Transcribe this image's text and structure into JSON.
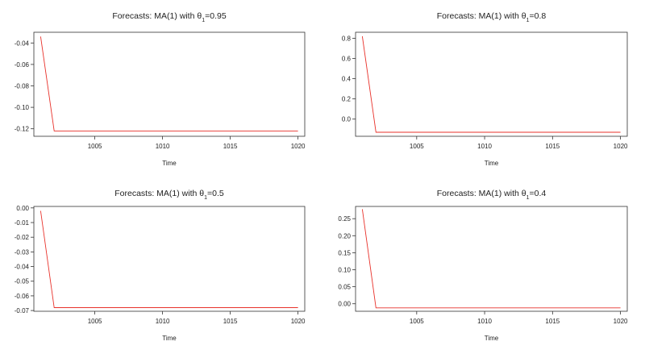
{
  "chart_data": [
    {
      "type": "line",
      "title_prefix": "Forecasts: MA(1) with θ",
      "title_subscript": "1",
      "title_suffix": "=0.95",
      "xlabel": "Time",
      "xlim": [
        1000.5,
        1020.5
      ],
      "ylim": [
        -0.127,
        -0.03
      ],
      "xticks": [
        1005,
        1010,
        1015,
        1020
      ],
      "yticks": [
        -0.12,
        -0.1,
        -0.08,
        -0.06,
        -0.04
      ],
      "ytick_labels": [
        "-0.12",
        "-0.10",
        "-0.08",
        "-0.06",
        "-0.04"
      ],
      "line_color": "#e8312a",
      "series": [
        {
          "x": [
            1001,
            1002,
            1020
          ],
          "y": [
            -0.034,
            -0.122,
            -0.122
          ]
        }
      ]
    },
    {
      "type": "line",
      "title_prefix": "Forecasts: MA(1) with θ",
      "title_subscript": "1",
      "title_suffix": "=0.8",
      "xlabel": "Time",
      "xlim": [
        1000.5,
        1020.5
      ],
      "ylim": [
        -0.17,
        0.86
      ],
      "xticks": [
        1005,
        1010,
        1015,
        1020
      ],
      "yticks": [
        0.0,
        0.2,
        0.4,
        0.6,
        0.8
      ],
      "ytick_labels": [
        "0.0",
        "0.2",
        "0.4",
        "0.6",
        "0.8"
      ],
      "line_color": "#e8312a",
      "series": [
        {
          "x": [
            1001,
            1002,
            1020
          ],
          "y": [
            0.82,
            -0.13,
            -0.13
          ]
        }
      ]
    },
    {
      "type": "line",
      "title_prefix": "Forecasts: MA(1) with θ",
      "title_subscript": "1",
      "title_suffix": "=0.5",
      "xlabel": "Time",
      "xlim": [
        1000.5,
        1020.5
      ],
      "ylim": [
        -0.0705,
        0.001
      ],
      "xticks": [
        1005,
        1010,
        1015,
        1020
      ],
      "yticks": [
        -0.07,
        -0.06,
        -0.05,
        -0.04,
        -0.03,
        -0.02,
        -0.01,
        0.0
      ],
      "ytick_labels": [
        "-0.07",
        "-0.06",
        "-0.05",
        "-0.04",
        "-0.03",
        "-0.02",
        "-0.01",
        "0.00"
      ],
      "line_color": "#e8312a",
      "series": [
        {
          "x": [
            1001,
            1002,
            1020
          ],
          "y": [
            -0.002,
            -0.068,
            -0.068
          ]
        }
      ]
    },
    {
      "type": "line",
      "title_prefix": "Forecasts: MA(1) with θ",
      "title_subscript": "1",
      "title_suffix": "=0.4",
      "xlabel": "Time",
      "xlim": [
        1000.5,
        1020.5
      ],
      "ylim": [
        -0.022,
        0.286
      ],
      "xticks": [
        1005,
        1010,
        1015,
        1020
      ],
      "yticks": [
        0.0,
        0.05,
        0.1,
        0.15,
        0.2,
        0.25
      ],
      "ytick_labels": [
        "0.00",
        "0.05",
        "0.10",
        "0.15",
        "0.20",
        "0.25"
      ],
      "line_color": "#e8312a",
      "series": [
        {
          "x": [
            1001,
            1002,
            1020
          ],
          "y": [
            0.278,
            -0.012,
            -0.012
          ]
        }
      ]
    }
  ]
}
